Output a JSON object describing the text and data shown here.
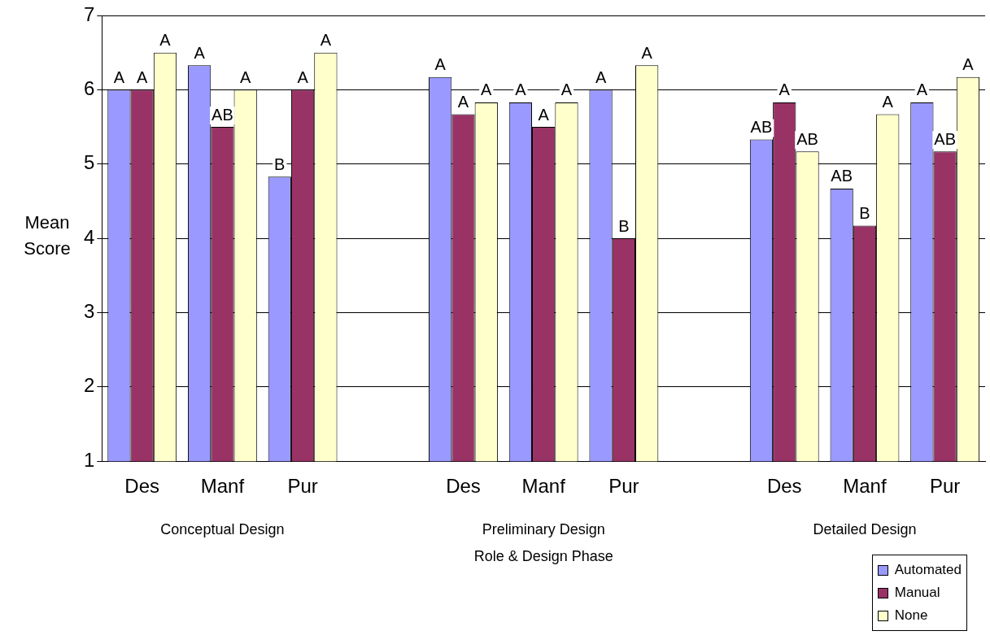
{
  "chart_data": {
    "type": "bar",
    "xlabel": "Role & Design Phase",
    "ylabel": "Mean Score",
    "categories": [
      "Des",
      "Manf",
      "Pur",
      null,
      "Des",
      "Manf",
      "Pur",
      null,
      "Des",
      "Manf",
      "Pur"
    ],
    "series": [
      {
        "name": "Automated",
        "color": "#9999ff",
        "values": [
          6,
          6.33,
          4.83,
          null,
          6.17,
          5.83,
          6,
          null,
          5.33,
          4.67,
          5.83
        ],
        "value_labels": [
          "A",
          "A",
          "B",
          null,
          "A",
          "A",
          "A",
          null,
          "AB",
          "AB",
          "A"
        ]
      },
      {
        "name": "Manual",
        "color": "#993366",
        "values": [
          6,
          5.5,
          6,
          null,
          5.67,
          5.5,
          4,
          null,
          5.83,
          4.17,
          5.17
        ],
        "value_labels": [
          "A",
          "AB",
          "A",
          null,
          "A",
          "A",
          "B",
          null,
          "A",
          "B",
          "AB"
        ]
      },
      {
        "name": "None",
        "color": "#ffffcc",
        "values": [
          6.5,
          6,
          6.5,
          null,
          5.83,
          5.83,
          6.33,
          null,
          5.17,
          5.67,
          6.17
        ],
        "value_labels": [
          "A",
          "A",
          "A",
          null,
          "A",
          "A",
          "A",
          null,
          "AB",
          "A",
          "A"
        ]
      }
    ],
    "annotations": [
      "Conceptual Design",
      "Preliminary Design",
      "Detailed Design"
    ],
    "ylim": [
      1,
      7
    ],
    "yticks": [
      1,
      2,
      3,
      4,
      5,
      6,
      7
    ],
    "grid": "y",
    "legend": "bottom right"
  }
}
